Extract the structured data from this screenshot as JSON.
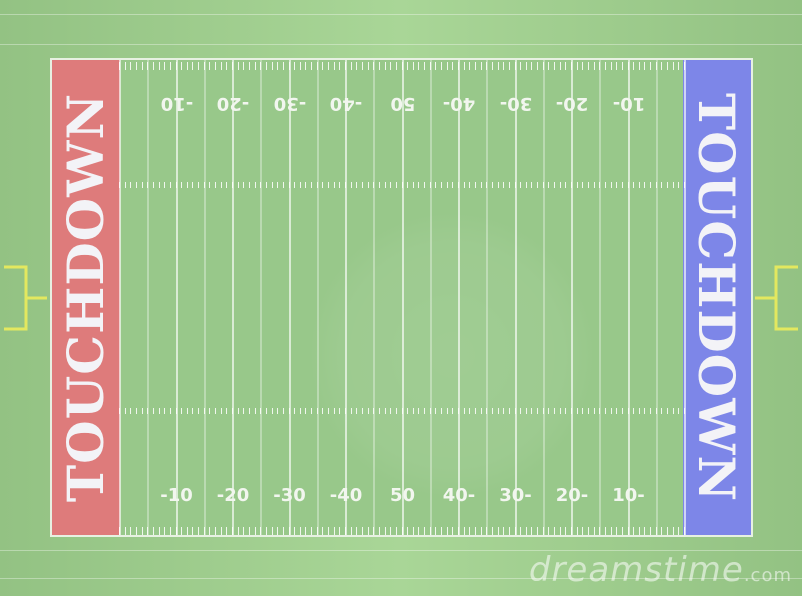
{
  "field": {
    "endzone_left_text": "TOUCHDOWN",
    "endzone_right_text": "TOUCHDOWN",
    "endzone_left_color": "#de7b7b",
    "endzone_right_color": "#7d86e8",
    "grass_color": "#98c88a",
    "numbers_top": [
      "-10",
      "-20",
      "-30",
      "-40",
      "50",
      "40-",
      "30-",
      "20-",
      "10-"
    ],
    "numbers_bottom": [
      "-10",
      "-20",
      "-30",
      "-40",
      "50",
      "40-",
      "30-",
      "20-",
      "10-"
    ],
    "goalpost_color": "#e3e85f"
  },
  "watermark": {
    "text": "dreamstime",
    "suffix": ".com",
    "symbol": "©"
  }
}
